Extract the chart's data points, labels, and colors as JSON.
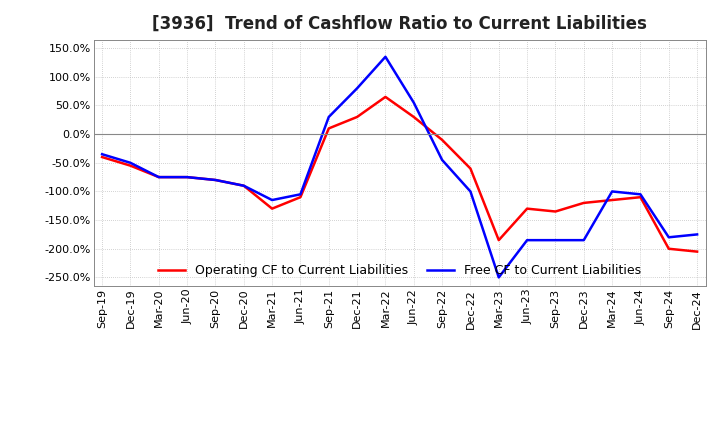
{
  "title": "[3936]  Trend of Cashflow Ratio to Current Liabilities",
  "x_labels": [
    "Sep-19",
    "Dec-19",
    "Mar-20",
    "Jun-20",
    "Sep-20",
    "Dec-20",
    "Mar-21",
    "Jun-21",
    "Sep-21",
    "Dec-21",
    "Mar-22",
    "Jun-22",
    "Sep-22",
    "Dec-22",
    "Mar-23",
    "Jun-23",
    "Sep-23",
    "Dec-23",
    "Mar-24",
    "Jun-24",
    "Sep-24",
    "Dec-24"
  ],
  "operating_cf": [
    -40,
    -55,
    -75,
    -75,
    -80,
    -90,
    -130,
    -110,
    10,
    30,
    65,
    30,
    -10,
    -60,
    -185,
    -130,
    -135,
    -120,
    -115,
    -110,
    -200,
    -205
  ],
  "free_cf": [
    -35,
    -50,
    -75,
    -75,
    -80,
    -90,
    -115,
    -105,
    30,
    80,
    135,
    55,
    -45,
    -100,
    -250,
    -185,
    -185,
    -185,
    -100,
    -105,
    -180,
    -175
  ],
  "operating_color": "#ff0000",
  "free_color": "#0000ff",
  "ylim": [
    -265,
    165
  ],
  "yticks": [
    -250,
    -200,
    -150,
    -100,
    -50,
    0,
    50,
    100,
    150
  ],
  "background_color": "#ffffff",
  "grid_color": "#aaaaaa",
  "legend_op": "Operating CF to Current Liabilities",
  "legend_free": "Free CF to Current Liabilities",
  "title_fontsize": 12,
  "tick_fontsize": 8,
  "legend_fontsize": 9,
  "linewidth": 1.8
}
